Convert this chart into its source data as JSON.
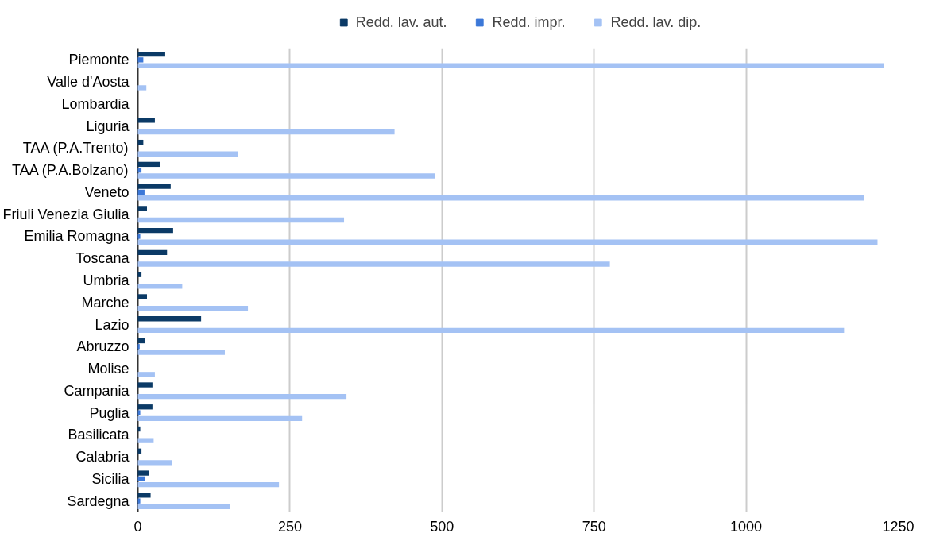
{
  "chart_data": {
    "type": "bar",
    "orientation": "horizontal",
    "categories": [
      "Piemonte",
      "Valle d'Aosta",
      "Lombardia",
      "Liguria",
      "TAA (P.A.Trento)",
      "TAA (P.A.Bolzano)",
      "Veneto",
      "Friuli Venezia Giulia",
      "Emilia Romagna",
      "Toscana",
      "Umbria",
      "Marche",
      "Lazio",
      "Abruzzo",
      "Molise",
      "Campania",
      "Puglia",
      "Basilicata",
      "Calabria",
      "Sicilia",
      "Sardegna"
    ],
    "series": [
      {
        "name": "Redd. lav. aut.",
        "color": "#0b3a66",
        "values": [
          45,
          0,
          null,
          28,
          9,
          36,
          54,
          15,
          58,
          48,
          6,
          15,
          104,
          12,
          0,
          24,
          24,
          4,
          6,
          18,
          21
        ]
      },
      {
        "name": "Redd. impr.",
        "color": "#3c78d8",
        "values": [
          9,
          0,
          null,
          0,
          0,
          6,
          11,
          0,
          4,
          0,
          0,
          0,
          0,
          3,
          0,
          0,
          4,
          0,
          0,
          12,
          4
        ]
      },
      {
        "name": "Redd. lav. dip.",
        "color": "#a4c2f4",
        "values": [
          1227,
          14,
          null,
          422,
          165,
          489,
          1194,
          339,
          1216,
          776,
          73,
          181,
          1161,
          143,
          28,
          343,
          270,
          26,
          56,
          232,
          151
        ]
      }
    ],
    "xlim": [
      0,
      1250
    ],
    "xticks": [
      0,
      250,
      500,
      750,
      1000,
      1250
    ],
    "grid": "x",
    "legend": "top"
  }
}
